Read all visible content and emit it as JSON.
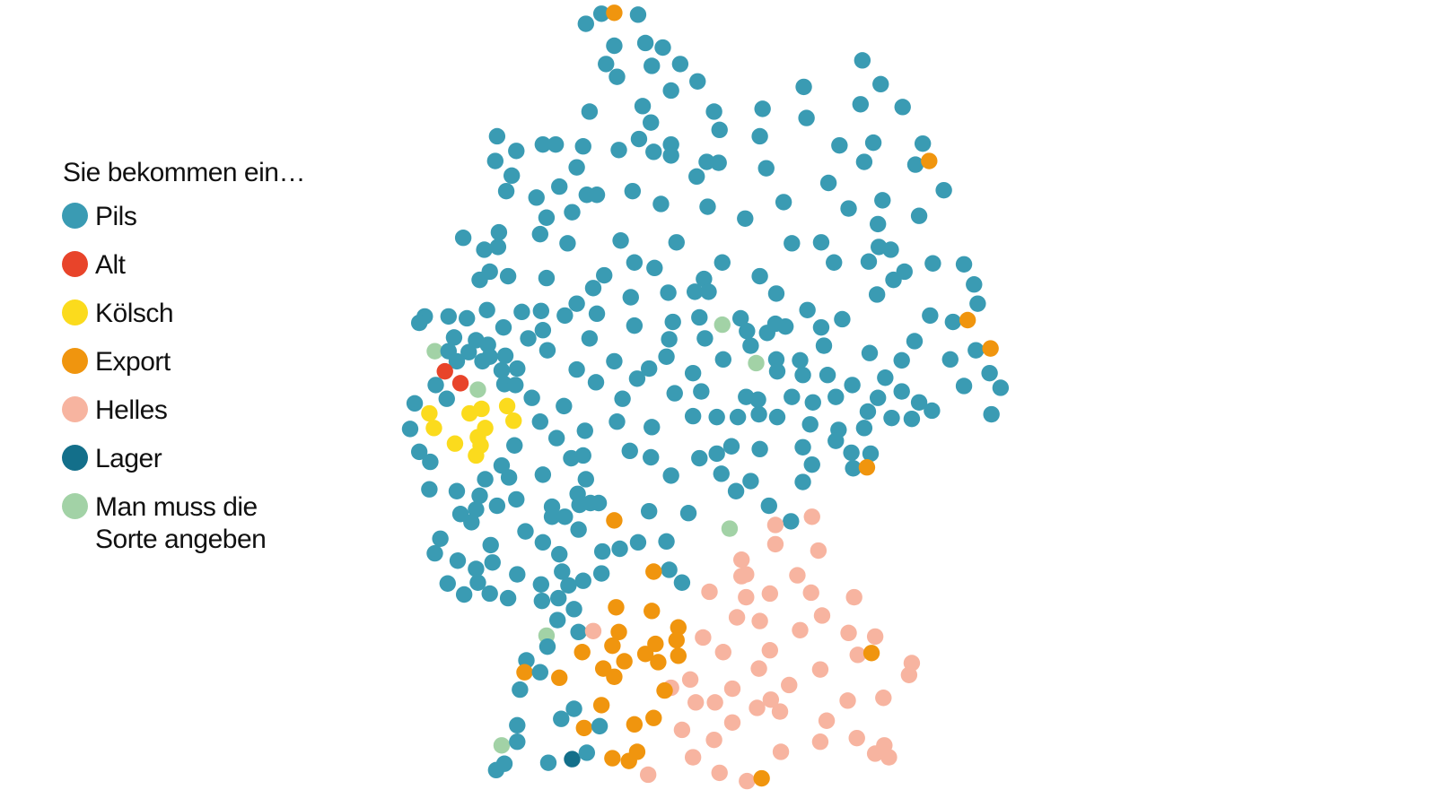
{
  "legend": {
    "title": "Sie bekommen ein…",
    "items": [
      {
        "label": "Pils",
        "color": "#3a9bb3"
      },
      {
        "label": "Alt",
        "color": "#e8442a"
      },
      {
        "label": "Kölsch",
        "color": "#fbdb1d"
      },
      {
        "label": "Export",
        "color": "#f0950e"
      },
      {
        "label": "Helles",
        "color": "#f7b4a0"
      },
      {
        "label": "Lager",
        "color": "#136f8a"
      },
      {
        "label": "Man muss die Sorte angeben",
        "color": "#a2d2a6"
      }
    ]
  }
}
